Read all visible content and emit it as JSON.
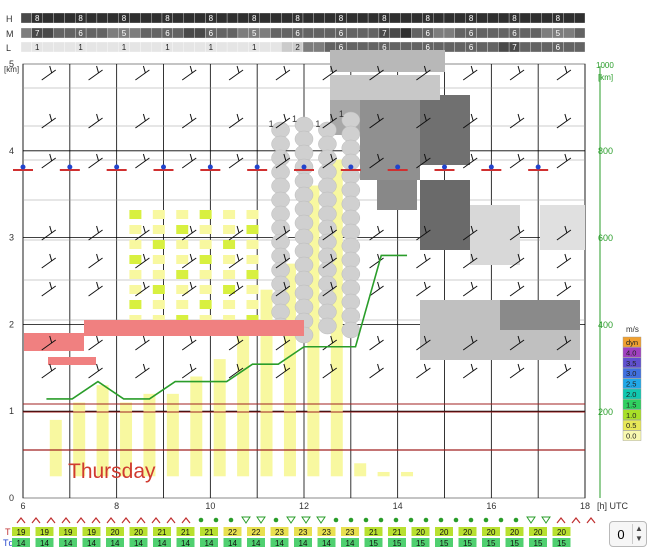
{
  "chart_data": {
    "type": "meteogram",
    "title": "",
    "day_label": "Thursday",
    "x_unit": "[h] UTC",
    "x_ticks": [
      6,
      8,
      10,
      12,
      14,
      16,
      18
    ],
    "hours": [
      6,
      7,
      8,
      9,
      10,
      11,
      12,
      13,
      14,
      15,
      16,
      17,
      18
    ],
    "left_axis": {
      "unit": "[km]",
      "ticks": [
        0,
        1,
        2,
        3,
        4,
        5
      ]
    },
    "right_axis": {
      "unit": "[km]",
      "top_label": "1000",
      "ticks": [
        200,
        400,
        600,
        800
      ]
    },
    "cloud_rows": [
      {
        "label": "H",
        "values": [
          7,
          8,
          8,
          8,
          8,
          8,
          8,
          8,
          8,
          8,
          8,
          8,
          8,
          8,
          8,
          8,
          8,
          8,
          8,
          8,
          8,
          8,
          8,
          8,
          8,
          8,
          8,
          8,
          8,
          8,
          8,
          8,
          8,
          8,
          8,
          8,
          8,
          8,
          8,
          8,
          8,
          8,
          8,
          8,
          8,
          8,
          8,
          8,
          8,
          8,
          8,
          8
        ]
      },
      {
        "label": "M",
        "values": [
          5,
          7,
          7,
          6,
          6,
          6,
          6,
          6,
          5,
          5,
          5,
          6,
          6,
          6,
          6,
          7,
          7,
          6,
          6,
          6,
          5,
          5,
          5,
          6,
          6,
          6,
          6,
          6,
          6,
          6,
          6,
          6,
          6,
          7,
          7,
          8,
          6,
          6,
          5,
          5,
          6,
          6,
          6,
          6,
          6,
          6,
          6,
          6,
          5,
          5,
          5,
          6
        ]
      },
      {
        "label": "L",
        "values": [
          1,
          1,
          1,
          1,
          1,
          1,
          1,
          1,
          1,
          1,
          1,
          1,
          1,
          1,
          1,
          1,
          1,
          1,
          1,
          1,
          1,
          1,
          1,
          1,
          2,
          2,
          5,
          5,
          6,
          6,
          6,
          6,
          6,
          6,
          6,
          6,
          6,
          6,
          6,
          6,
          6,
          6,
          6,
          6,
          7,
          7,
          6,
          6,
          6,
          6,
          6,
          6
        ]
      }
    ],
    "boundary_layer_top_m": [
      230,
      230,
      270,
      230,
      230,
      270,
      270,
      270,
      310,
      310,
      350,
      350,
      350,
      560,
      560
    ],
    "tendency_markers": [
      "^",
      "^",
      "^",
      "^",
      "^",
      "^",
      "^",
      "^",
      "^",
      "^",
      "^",
      "^",
      "o",
      "o",
      "o",
      "v",
      "v",
      "o",
      "v",
      "v",
      "v",
      "o",
      "o",
      "o",
      "o",
      "o",
      "o",
      "o",
      "o",
      "o",
      "o",
      "o",
      "o",
      "o",
      "v",
      "v",
      "^",
      "^",
      "^"
    ],
    "temperature": {
      "label": "T",
      "values": [
        19,
        19,
        19,
        19,
        20,
        20,
        21,
        21,
        21,
        22,
        22,
        23,
        23,
        23,
        23,
        21,
        21,
        20,
        20,
        20,
        20,
        20,
        20,
        20
      ]
    },
    "dewpoint": {
      "label": "Td",
      "values": [
        14,
        14,
        14,
        14,
        14,
        14,
        14,
        14,
        14,
        14,
        14,
        14,
        14,
        14,
        14,
        15,
        15,
        15,
        15,
        15,
        15,
        15,
        15,
        15
      ]
    },
    "wind_scale": {
      "unit": "m/s",
      "entries": [
        {
          "label": "dyn",
          "color": "#f0a030"
        },
        {
          "label": "4.0",
          "color": "#a040c0"
        },
        {
          "label": "3.5",
          "color": "#6050d0"
        },
        {
          "label": "3.0",
          "color": "#4070e0"
        },
        {
          "label": "2.5",
          "color": "#20a8e8"
        },
        {
          "label": "2.0",
          "color": "#10c8b0"
        },
        {
          "label": "1.5",
          "color": "#30d060"
        },
        {
          "label": "1.0",
          "color": "#a8e028"
        },
        {
          "label": "0.5",
          "color": "#e8e858"
        },
        {
          "label": "0.0",
          "color": "#f8f8b0"
        }
      ]
    },
    "colors": {
      "boundary_line": "#2a9d2a",
      "inversion": "#f08080",
      "thermal": "#f8f8a0",
      "thermal_strong": "#d8f040",
      "cloud": "#d0d0d0",
      "ground_line": "#a02020",
      "day_label": "#d03a30",
      "right_axis": "#2a9d2a"
    }
  },
  "ui": {
    "spinner_value": "0",
    "spinner_up": "▲",
    "spinner_down": "▼"
  }
}
